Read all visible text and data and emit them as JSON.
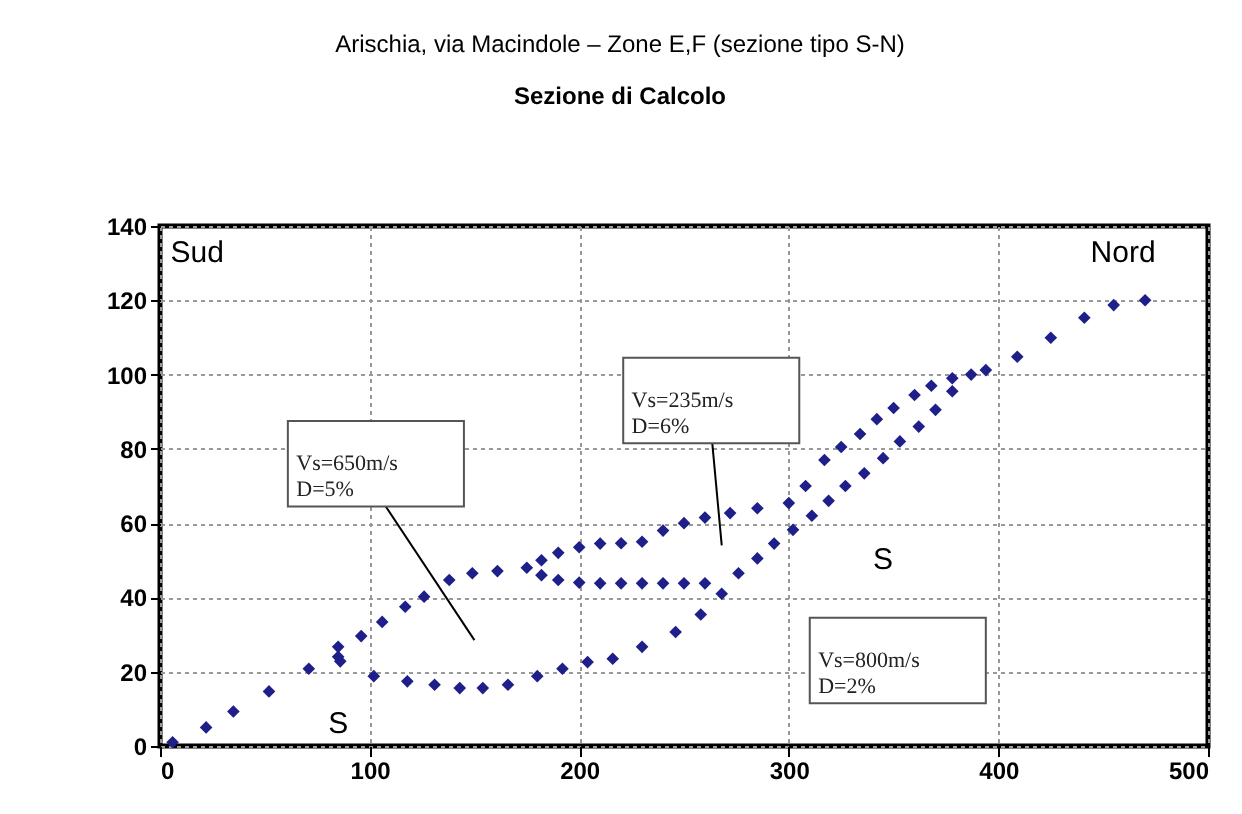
{
  "chart_data": {
    "type": "scatter",
    "title": "Arischia, via Macindole – Zone E,F (sezione tipo S-N)",
    "subtitle": "Sezione di Calcolo",
    "marker": "diamond",
    "grid": true,
    "xlim": [
      0,
      500
    ],
    "xticks": [
      0,
      100,
      200,
      300,
      400,
      500
    ],
    "ylim": [
      0,
      140
    ],
    "yticks": [
      0,
      20,
      40,
      60,
      80,
      100,
      120,
      140
    ],
    "series": [
      {
        "color": "#1f1f8a",
        "x": [
          6,
          22,
          35,
          52,
          71,
          85,
          96,
          106,
          117,
          126,
          138,
          149,
          161,
          175,
          182,
          190,
          200,
          210,
          220,
          230,
          240,
          250,
          260,
          272,
          285,
          300,
          308,
          317,
          325,
          334,
          342,
          350,
          360,
          368,
          378,
          387,
          394,
          409,
          425,
          441,
          455,
          470
        ],
        "values": [
          1,
          5,
          9.3,
          14.7,
          20.8,
          26.7,
          29.6,
          33.4,
          37.5,
          40.2,
          44.7,
          46.5,
          47.1,
          48,
          50,
          52,
          53.5,
          54.5,
          54.6,
          55,
          58,
          60,
          61.5,
          62.7,
          64,
          65.4,
          70,
          77,
          80.5,
          84,
          88,
          91,
          94.5,
          97,
          99,
          100,
          101.2,
          104.8,
          109.9,
          115.3,
          118.7,
          120
        ]
      },
      {
        "color": "#1f1f8a",
        "x": [
          86,
          85,
          102,
          118,
          131,
          143,
          154,
          166,
          180,
          192,
          204,
          216,
          230,
          246,
          258,
          268,
          182,
          190,
          200,
          210,
          220,
          230,
          240,
          250,
          260,
          276,
          285,
          293,
          302,
          311,
          319,
          327,
          336,
          345,
          353,
          362,
          370,
          378
        ],
        "values": [
          22.8,
          24,
          18.8,
          17.4,
          16.5,
          15.6,
          15.6,
          16.5,
          18.8,
          20.8,
          22.6,
          23.5,
          26.7,
          30.7,
          35.4,
          41,
          46,
          44.7,
          44,
          43.8,
          43.8,
          43.8,
          43.8,
          43.8,
          43.8,
          46.5,
          50.5,
          54.5,
          58.2,
          62,
          66,
          70,
          73.4,
          77.5,
          82,
          86,
          90.5,
          95.5
        ]
      }
    ],
    "annotations": [
      "Sud",
      "Nord",
      "S",
      "S",
      "Vs=650m/s\nD=5%",
      "Vs=235m/s\nD=6%",
      "Vs=800m/s\nD=2%"
    ]
  }
}
